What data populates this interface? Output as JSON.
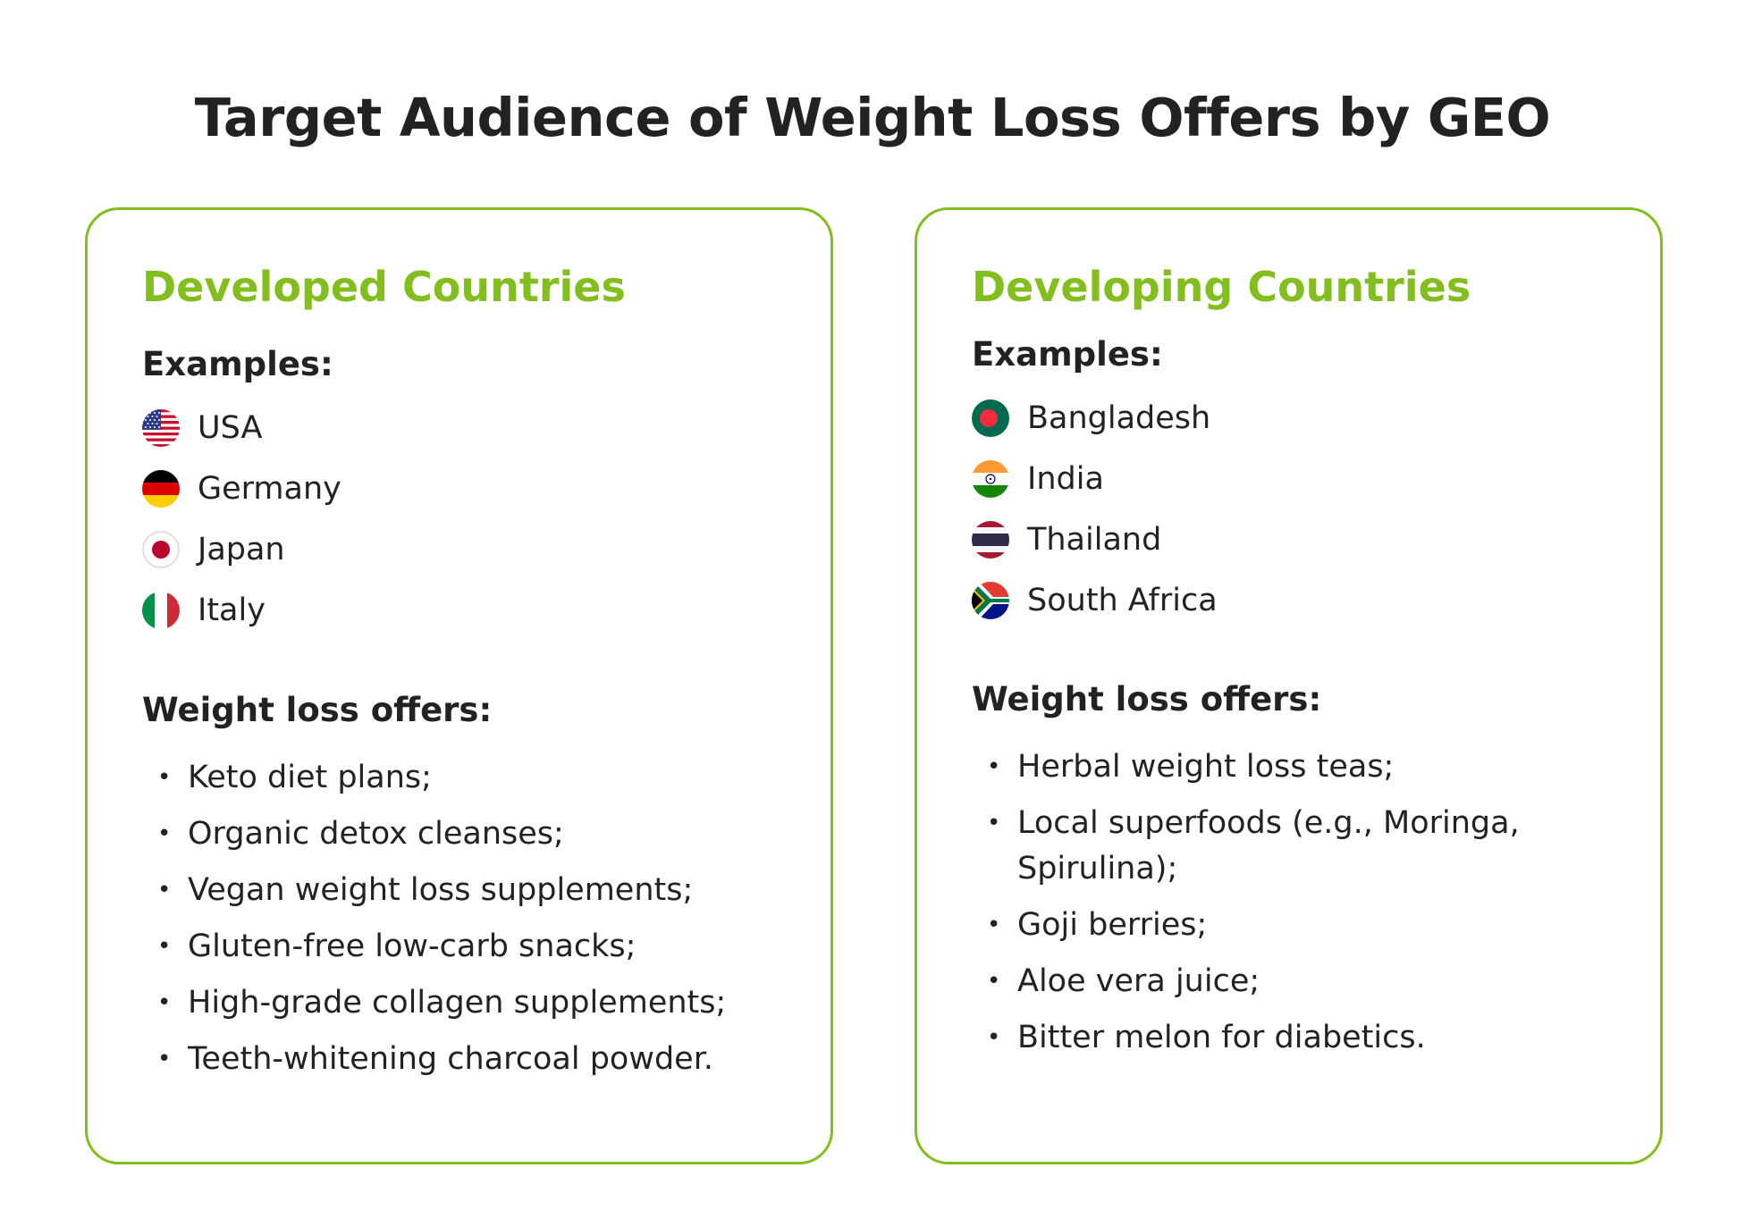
{
  "title": "Target Audience of Weight Loss Offers by GEO",
  "colors": {
    "accent": "#82bf1e",
    "text": "#222222",
    "background": "#ffffff"
  },
  "cards": [
    {
      "heading": "Developed Countries",
      "examples_label": "Examples:",
      "countries": [
        {
          "name": "USA",
          "flag": "usa-flag-icon"
        },
        {
          "name": "Germany",
          "flag": "germany-flag-icon"
        },
        {
          "name": "Japan",
          "flag": "japan-flag-icon"
        },
        {
          "name": "Italy",
          "flag": "italy-flag-icon"
        }
      ],
      "offers_label": "Weight loss offers:",
      "bullet": "•",
      "offers": [
        "Keto diet plans;",
        "Organic detox cleanses;",
        "Vegan weight loss supplements;",
        "Gluten-free low-carb snacks;",
        "High-grade collagen supplements;",
        "Teeth-whitening charcoal powder."
      ]
    },
    {
      "heading": "Developing Countries",
      "examples_label": "Examples:",
      "countries": [
        {
          "name": "Bangladesh",
          "flag": "bangladesh-flag-icon"
        },
        {
          "name": "India",
          "flag": "india-flag-icon"
        },
        {
          "name": "Thailand",
          "flag": "thailand-flag-icon"
        },
        {
          "name": "South Africa",
          "flag": "south-africa-flag-icon"
        }
      ],
      "offers_label": "Weight loss offers:",
      "bullet": "•",
      "offers": [
        "Herbal weight loss teas;",
        "Local superfoods (e.g., Moringa, Spirulina);",
        "Goji berries;",
        "Aloe vera juice;",
        "Bitter melon for diabetics."
      ]
    }
  ]
}
